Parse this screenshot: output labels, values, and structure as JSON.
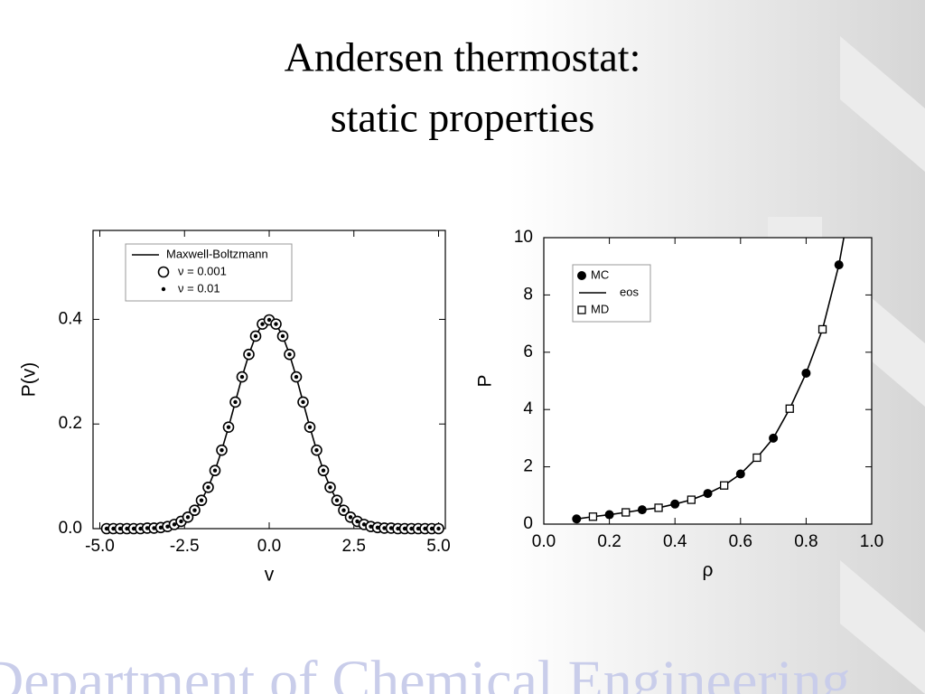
{
  "slide": {
    "title_lines": [
      "Andersen thermostat:",
      "static properties"
    ],
    "footer": "Department of Chemical Engineering"
  },
  "chart_data": [
    {
      "type": "line-scatter",
      "xlabel": "v",
      "ylabel": "P(v)",
      "x": [
        -4.8,
        -4.6,
        -4.4,
        -4.2,
        -4.0,
        -3.8,
        -3.6,
        -3.4,
        -3.2,
        -3.0,
        -2.8,
        -2.6,
        -2.4,
        -2.2,
        -2.0,
        -1.8,
        -1.6,
        -1.4,
        -1.2,
        -1.0,
        -0.8,
        -0.6,
        -0.4,
        -0.2,
        0.0,
        0.2,
        0.4,
        0.6,
        0.8,
        1.0,
        1.2,
        1.4,
        1.6,
        1.8,
        2.0,
        2.2,
        2.4,
        2.6,
        2.8,
        3.0,
        3.2,
        3.4,
        3.6,
        3.8,
        4.0,
        4.2,
        4.4,
        4.6,
        4.8,
        5.0
      ],
      "series": [
        {
          "name": "Maxwell-Boltzmann",
          "style": "line",
          "color": "#000000",
          "values": [
            0,
            0,
            0,
            0,
            0,
            0,
            0.001,
            0.001,
            0.002,
            0.004,
            0.008,
            0.014,
            0.022,
            0.035,
            0.054,
            0.079,
            0.111,
            0.15,
            0.194,
            0.242,
            0.29,
            0.333,
            0.368,
            0.391,
            0.399,
            0.391,
            0.368,
            0.333,
            0.29,
            0.242,
            0.194,
            0.15,
            0.111,
            0.079,
            0.054,
            0.035,
            0.022,
            0.014,
            0.008,
            0.004,
            0.002,
            0.001,
            0.001,
            0,
            0,
            0,
            0,
            0,
            0,
            0
          ]
        },
        {
          "name": "ν  = 0.001",
          "style": "open-circle",
          "color": "#000000",
          "values": [
            0,
            0,
            0,
            0,
            0,
            0,
            0.001,
            0.001,
            0.002,
            0.004,
            0.008,
            0.014,
            0.022,
            0.035,
            0.054,
            0.079,
            0.111,
            0.15,
            0.194,
            0.242,
            0.29,
            0.333,
            0.368,
            0.391,
            0.399,
            0.391,
            0.368,
            0.333,
            0.29,
            0.242,
            0.194,
            0.15,
            0.111,
            0.079,
            0.054,
            0.035,
            0.022,
            0.014,
            0.008,
            0.004,
            0.002,
            0.001,
            0.001,
            0,
            0,
            0,
            0,
            0,
            0,
            0
          ]
        },
        {
          "name": "ν  = 0.01",
          "style": "dot",
          "color": "#000000",
          "values": [
            0,
            0,
            0,
            0,
            0,
            0,
            0.001,
            0.001,
            0.002,
            0.004,
            0.008,
            0.014,
            0.022,
            0.035,
            0.054,
            0.079,
            0.111,
            0.15,
            0.194,
            0.242,
            0.29,
            0.333,
            0.368,
            0.391,
            0.399,
            0.391,
            0.368,
            0.333,
            0.29,
            0.242,
            0.194,
            0.15,
            0.111,
            0.079,
            0.054,
            0.035,
            0.022,
            0.014,
            0.008,
            0.004,
            0.002,
            0.001,
            0.001,
            0,
            0,
            0,
            0,
            0,
            0,
            0
          ]
        }
      ],
      "xlim": [
        -5.2,
        5.2
      ],
      "xticks": [
        {
          "value": -5,
          "label": "-5.0"
        },
        {
          "value": -2.5,
          "label": "-2.5"
        },
        {
          "value": 0,
          "label": "0.0"
        },
        {
          "value": 2.5,
          "label": "2.5"
        },
        {
          "value": 5,
          "label": "5.0"
        }
      ],
      "ylim": [
        0,
        0.57
      ],
      "yticks": [
        {
          "value": 0,
          "label": "0.0"
        },
        0.2,
        0.4
      ],
      "legend": "upper-left"
    },
    {
      "type": "line-scatter",
      "xlabel": "ρ",
      "ylabel": "P",
      "series": [
        {
          "name": "MC",
          "style": "filled-circle",
          "color": "#000000",
          "x": [
            0.1,
            0.2,
            0.3,
            0.4,
            0.5,
            0.6,
            0.7,
            0.8,
            0.9
          ],
          "values": [
            0.18,
            0.33,
            0.5,
            0.7,
            1.07,
            1.75,
            3.0,
            5.27,
            9.05
          ]
        },
        {
          "name": "eos",
          "style": "line",
          "color": "#000000",
          "x": [
            0.1,
            0.15,
            0.2,
            0.25,
            0.3,
            0.35,
            0.4,
            0.45,
            0.5,
            0.55,
            0.6,
            0.65,
            0.7,
            0.75,
            0.8,
            0.85,
            0.9,
            0.915
          ],
          "values": [
            0.18,
            0.26,
            0.33,
            0.41,
            0.5,
            0.57,
            0.7,
            0.85,
            1.07,
            1.35,
            1.75,
            2.32,
            3.0,
            4.03,
            5.27,
            6.8,
            9.05,
            10
          ]
        },
        {
          "name": "MD",
          "style": "open-square",
          "color": "#000000",
          "x": [
            0.15,
            0.25,
            0.35,
            0.45,
            0.55,
            0.65,
            0.75,
            0.85
          ],
          "values": [
            0.26,
            0.41,
            0.57,
            0.85,
            1.35,
            2.32,
            4.03,
            6.8
          ]
        }
      ],
      "xlim": [
        0,
        1
      ],
      "xticks": [
        {
          "value": 0,
          "label": "0.0"
        },
        0.2,
        0.4,
        0.6,
        0.8,
        {
          "value": 1,
          "label": "1.0"
        }
      ],
      "ylim": [
        0,
        10
      ],
      "yticks": [
        0,
        2,
        4,
        6,
        8,
        10
      ],
      "legend": "upper-left"
    }
  ]
}
